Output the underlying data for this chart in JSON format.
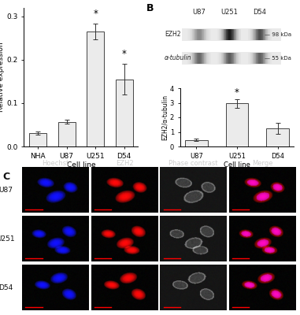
{
  "panel_A": {
    "categories": [
      "NHA",
      "U87",
      "U251",
      "D54"
    ],
    "values": [
      0.031,
      0.057,
      0.265,
      0.155
    ],
    "errors": [
      0.004,
      0.005,
      0.018,
      0.035
    ],
    "ylabel": "Relative expression",
    "xlabel": "Cell line",
    "ylim": [
      0,
      0.32
    ],
    "yticks": [
      0.0,
      0.1,
      0.2,
      0.3
    ],
    "bar_color": "#ebebeb",
    "bar_edgecolor": "#444444",
    "significant": [
      false,
      false,
      true,
      true
    ]
  },
  "panel_B_bar": {
    "categories": [
      "U87",
      "U251",
      "D54"
    ],
    "values": [
      0.45,
      2.95,
      1.25
    ],
    "errors": [
      0.08,
      0.28,
      0.38
    ],
    "ylabel": "EZH2/α-tubulin",
    "xlabel": "Cell line",
    "ylim": [
      0,
      4
    ],
    "yticks": [
      0,
      1,
      2,
      3,
      4
    ],
    "bar_color": "#ebebeb",
    "bar_edgecolor": "#444444",
    "significant": [
      false,
      true,
      false
    ]
  },
  "panel_B_blot": {
    "labels": [
      "EZH2",
      "α-tubulin"
    ],
    "cell_lines": [
      "U87",
      "U251",
      "D54"
    ],
    "kda_labels": [
      "98 kDa",
      "55 kDa"
    ],
    "ezh2_intensities": [
      0.45,
      0.95,
      0.72
    ],
    "tub_intensities": [
      0.6,
      0.65,
      0.63
    ]
  },
  "panel_C": {
    "row_labels": [
      "U87",
      "U251",
      "D54"
    ],
    "col_labels": [
      "Hoechst",
      "EZH2",
      "Phase contrast",
      "Merge"
    ],
    "cell_positions": [
      [
        [
          35,
          65
        ],
        [
          50,
          35
        ],
        [
          72,
          55
        ]
      ],
      [
        [
          25,
          60
        ],
        [
          50,
          40
        ],
        [
          70,
          65
        ],
        [
          60,
          25
        ]
      ],
      [
        [
          30,
          55
        ],
        [
          55,
          70
        ],
        [
          70,
          35
        ]
      ]
    ],
    "cell_sizes": [
      [
        [
          13,
          10
        ],
        [
          16,
          12
        ],
        [
          12,
          10
        ]
      ],
      [
        [
          11,
          9
        ],
        [
          14,
          11
        ],
        [
          13,
          10
        ],
        [
          12,
          9
        ]
      ],
      [
        [
          12,
          9
        ],
        [
          14,
          11
        ],
        [
          13,
          10
        ]
      ]
    ],
    "cell_angles": [
      20,
      145,
      60,
      10,
      170,
      40,
      80,
      120,
      30,
      155
    ]
  },
  "figure": {
    "bg_color": "#ffffff",
    "text_color": "#222222",
    "fontsize": 6.5,
    "label_fontsize": 9
  }
}
